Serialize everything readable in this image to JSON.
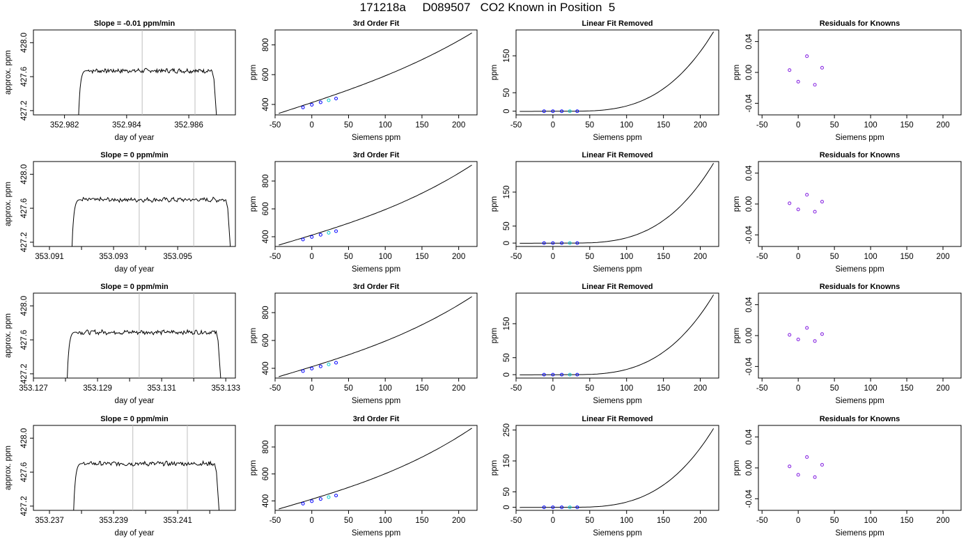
{
  "page_title": "171218a     D089507   CO2 Known in Position  5",
  "colors": {
    "trace": "#000000",
    "marker_line": "#bebebe",
    "axis": "#000000",
    "cal_points": [
      "#0000ff",
      "#0000ff",
      "#0000ff",
      "#00cdcd",
      "#0000ff"
    ],
    "residual_points": "#8a2be2"
  },
  "chart_data": [
    {
      "type": "line",
      "title": "Slope =  -0.01  ppm/min",
      "xlabel": "day of year",
      "ylabel": "approx. ppm",
      "xlim": [
        352.981,
        352.9875
      ],
      "ylim": [
        427.15,
        428.15
      ],
      "xticks": [
        352.982,
        352.984,
        352.986
      ],
      "yticks": [
        427.2,
        427.6,
        428.0
      ],
      "marker_lines_x": [
        352.9845,
        352.9862
      ],
      "trace_x_start": 352.98245,
      "trace_x_rise_end": 352.9826,
      "trace_x_plateau_end": 352.98675,
      "trace_x_end": 352.9869,
      "plateau_ppm": 427.67,
      "grid": false
    },
    {
      "type": "line",
      "title": "3rd Order Fit",
      "xlabel": "Siemens ppm",
      "ylabel": "ppm",
      "xlim": [
        -50,
        225
      ],
      "ylim": [
        330,
        900
      ],
      "xticks": [
        -50,
        0,
        50,
        100,
        150,
        200
      ],
      "yticks": [
        400,
        600,
        800
      ],
      "curve": {
        "x0": -45,
        "x1": 218,
        "y_at_x0": 340,
        "y_at_x1": 880,
        "cubic_boost": 0.22
      },
      "points": {
        "x": [
          -12,
          0,
          12,
          23,
          33
        ],
        "y": [
          380,
          398,
          414,
          428,
          440
        ]
      },
      "grid": false
    },
    {
      "type": "line",
      "title": "Linear Fit Removed",
      "xlabel": "Siemens ppm",
      "ylabel": "ppm",
      "xlim": [
        -50,
        225
      ],
      "ylim": [
        -10,
        220
      ],
      "xticks": [
        -50,
        0,
        50,
        100,
        150,
        200
      ],
      "yticks": [
        0,
        50,
        150
      ],
      "curve": {
        "x0": -45,
        "x1": 218,
        "y_at_x1": 215
      },
      "points": {
        "x": [
          -12,
          0,
          12,
          23,
          33
        ],
        "y": [
          0,
          0,
          0,
          0,
          0
        ]
      },
      "grid": false
    },
    {
      "type": "scatter",
      "title": "Residuals for Knowns",
      "xlabel": "Siemens ppm",
      "ylabel": "ppm",
      "xlim": [
        -55,
        225
      ],
      "ylim": [
        -0.055,
        0.055
      ],
      "xticks": [
        -50,
        0,
        50,
        100,
        150,
        200
      ],
      "yticks": [
        -0.04,
        0.0,
        0.04
      ],
      "ytick_labels": [
        "-0.04",
        "0.00",
        "0.04"
      ],
      "points": {
        "x": [
          -12,
          0,
          12,
          23,
          33
        ],
        "y": [
          0.003,
          -0.012,
          0.021,
          -0.016,
          0.006
        ]
      },
      "grid": false
    },
    {
      "type": "line",
      "title": "Slope =  0  ppm/min",
      "xlabel": "day of year",
      "ylabel": "approx. ppm",
      "xlim": [
        353.0905,
        353.0968
      ],
      "ylim": [
        427.15,
        428.15
      ],
      "xticks": [
        353.091,
        353.092,
        353.093,
        353.094,
        353.095
      ],
      "xtick_labels": [
        "353.091",
        "",
        "353.093",
        "",
        "353.095"
      ],
      "yticks": [
        427.2,
        427.6,
        428.0
      ],
      "marker_lines_x": [
        353.0938,
        353.0955
      ],
      "trace_x_start": 353.0917,
      "trace_x_rise_end": 353.09185,
      "trace_x_plateau_end": 353.0965,
      "trace_x_end": 353.09665,
      "plateau_ppm": 427.7,
      "grid": false
    },
    {
      "type": "line",
      "title": "3rd Order Fit",
      "xlabel": "Siemens ppm",
      "ylabel": "ppm",
      "xlim": [
        -50,
        225
      ],
      "ylim": [
        330,
        940
      ],
      "xticks": [
        -50,
        0,
        50,
        100,
        150,
        200
      ],
      "yticks": [
        400,
        600,
        800
      ],
      "curve": {
        "x0": -45,
        "x1": 218,
        "y_at_x0": 340,
        "y_at_x1": 915,
        "cubic_boost": 0.28
      },
      "points": {
        "x": [
          -12,
          0,
          12,
          23,
          33
        ],
        "y": [
          380,
          398,
          414,
          428,
          440
        ]
      },
      "grid": false
    },
    {
      "type": "line",
      "title": "Linear Fit Removed",
      "xlabel": "Siemens ppm",
      "ylabel": "ppm",
      "xlim": [
        -50,
        225
      ],
      "ylim": [
        -10,
        240
      ],
      "xticks": [
        -50,
        0,
        50,
        100,
        150,
        200
      ],
      "yticks": [
        0,
        50,
        150
      ],
      "curve": {
        "x0": -45,
        "x1": 218,
        "y_at_x1": 235
      },
      "points": {
        "x": [
          -12,
          0,
          12,
          23,
          33
        ],
        "y": [
          0,
          0,
          0,
          0,
          0
        ]
      },
      "grid": false
    },
    {
      "type": "scatter",
      "title": "Residuals for Knowns",
      "xlabel": "Siemens ppm",
      "ylabel": "ppm",
      "xlim": [
        -55,
        225
      ],
      "ylim": [
        -0.055,
        0.055
      ],
      "xticks": [
        -50,
        0,
        50,
        100,
        150,
        200
      ],
      "yticks": [
        -0.04,
        0.0,
        0.04
      ],
      "ytick_labels": [
        "-0.04",
        "0.00",
        "0.04"
      ],
      "points": {
        "x": [
          -12,
          0,
          12,
          23,
          33
        ],
        "y": [
          0.001,
          -0.007,
          0.012,
          -0.01,
          0.003
        ]
      },
      "grid": false
    },
    {
      "type": "line",
      "title": "Slope =  0  ppm/min",
      "xlabel": "day of year",
      "ylabel": "approx. ppm",
      "xlim": [
        353.127,
        353.1333
      ],
      "ylim": [
        427.15,
        428.15
      ],
      "xticks": [
        353.127,
        353.128,
        353.129,
        353.13,
        353.131,
        353.132,
        353.133
      ],
      "xtick_labels": [
        "353.127",
        "",
        "353.129",
        "",
        "353.131",
        "",
        "353.133"
      ],
      "yticks": [
        427.2,
        427.6,
        428.0
      ],
      "marker_lines_x": [
        353.1303,
        353.132
      ],
      "trace_x_start": 353.12805,
      "trace_x_rise_end": 353.1282,
      "trace_x_plateau_end": 353.1327,
      "trace_x_end": 353.13285,
      "plateau_ppm": 427.69,
      "grid": false
    },
    {
      "type": "line",
      "title": "3rd Order Fit",
      "xlabel": "Siemens ppm",
      "ylabel": "ppm",
      "xlim": [
        -50,
        225
      ],
      "ylim": [
        330,
        940
      ],
      "xticks": [
        -50,
        0,
        50,
        100,
        150,
        200
      ],
      "yticks": [
        400,
        600,
        800
      ],
      "curve": {
        "x0": -45,
        "x1": 218,
        "y_at_x0": 340,
        "y_at_x1": 915,
        "cubic_boost": 0.28
      },
      "points": {
        "x": [
          -12,
          0,
          12,
          23,
          33
        ],
        "y": [
          380,
          398,
          414,
          428,
          440
        ]
      },
      "grid": false
    },
    {
      "type": "line",
      "title": "Linear Fit Removed",
      "xlabel": "Siemens ppm",
      "ylabel": "ppm",
      "xlim": [
        -50,
        225
      ],
      "ylim": [
        -10,
        240
      ],
      "xticks": [
        -50,
        0,
        50,
        100,
        150,
        200
      ],
      "yticks": [
        0,
        50,
        150
      ],
      "curve": {
        "x0": -45,
        "x1": 218,
        "y_at_x1": 235
      },
      "points": {
        "x": [
          -12,
          0,
          12,
          23,
          33
        ],
        "y": [
          0,
          0,
          0,
          0,
          0
        ]
      },
      "grid": false
    },
    {
      "type": "scatter",
      "title": "Residuals for Knowns",
      "xlabel": "Siemens ppm",
      "ylabel": "ppm",
      "xlim": [
        -55,
        225
      ],
      "ylim": [
        -0.055,
        0.055
      ],
      "xticks": [
        -50,
        0,
        50,
        100,
        150,
        200
      ],
      "yticks": [
        -0.04,
        0.0,
        0.04
      ],
      "ytick_labels": [
        "-0.04",
        "0.00",
        "0.04"
      ],
      "points": {
        "x": [
          -12,
          0,
          12,
          23,
          33
        ],
        "y": [
          0.001,
          -0.005,
          0.01,
          -0.007,
          0.002
        ]
      },
      "grid": false
    },
    {
      "type": "line",
      "title": "Slope =  0  ppm/min",
      "xlabel": "day of year",
      "ylabel": "approx. ppm",
      "xlim": [
        353.2365,
        353.2428
      ],
      "ylim": [
        427.15,
        428.15
      ],
      "xticks": [
        353.237,
        353.238,
        353.239,
        353.24,
        353.241,
        353.242
      ],
      "xtick_labels": [
        "353.237",
        "",
        "353.239",
        "",
        "353.241",
        ""
      ],
      "yticks": [
        427.2,
        427.6,
        428.0
      ],
      "marker_lines_x": [
        353.2396,
        353.2413
      ],
      "trace_x_start": 353.23775,
      "trace_x_rise_end": 353.2379,
      "trace_x_plateau_end": 353.24215,
      "trace_x_end": 353.2423,
      "plateau_ppm": 427.7,
      "grid": false
    },
    {
      "type": "line",
      "title": "3rd Order Fit",
      "xlabel": "Siemens ppm",
      "ylabel": "ppm",
      "xlim": [
        -50,
        225
      ],
      "ylim": [
        330,
        960
      ],
      "xticks": [
        -50,
        0,
        50,
        100,
        150,
        200
      ],
      "yticks": [
        400,
        600,
        800
      ],
      "curve": {
        "x0": -45,
        "x1": 218,
        "y_at_x0": 340,
        "y_at_x1": 940,
        "cubic_boost": 0.3
      },
      "points": {
        "x": [
          -12,
          0,
          12,
          23,
          33
        ],
        "y": [
          380,
          398,
          414,
          428,
          440
        ]
      },
      "grid": false
    },
    {
      "type": "line",
      "title": "Linear Fit Removed",
      "xlabel": "Siemens ppm",
      "ylabel": "ppm",
      "xlim": [
        -50,
        225
      ],
      "ylim": [
        -10,
        265
      ],
      "xticks": [
        -50,
        0,
        50,
        100,
        150,
        200
      ],
      "yticks": [
        0,
        50,
        150,
        250
      ],
      "curve": {
        "x0": -45,
        "x1": 218,
        "y_at_x1": 255
      },
      "points": {
        "x": [
          -12,
          0,
          12,
          23,
          33
        ],
        "y": [
          0,
          0,
          0,
          0,
          0
        ]
      },
      "grid": false
    },
    {
      "type": "scatter",
      "title": "Residuals for Knowns",
      "xlabel": "Siemens ppm",
      "ylabel": "ppm",
      "xlim": [
        -55,
        225
      ],
      "ylim": [
        -0.055,
        0.055
      ],
      "xticks": [
        -50,
        0,
        50,
        100,
        150,
        200
      ],
      "yticks": [
        -0.04,
        0.0,
        0.04
      ],
      "ytick_labels": [
        "-0.04",
        "0.00",
        "0.04"
      ],
      "points": {
        "x": [
          -12,
          0,
          12,
          23,
          33
        ],
        "y": [
          0.002,
          -0.009,
          0.014,
          -0.012,
          0.004
        ]
      },
      "grid": false
    }
  ]
}
